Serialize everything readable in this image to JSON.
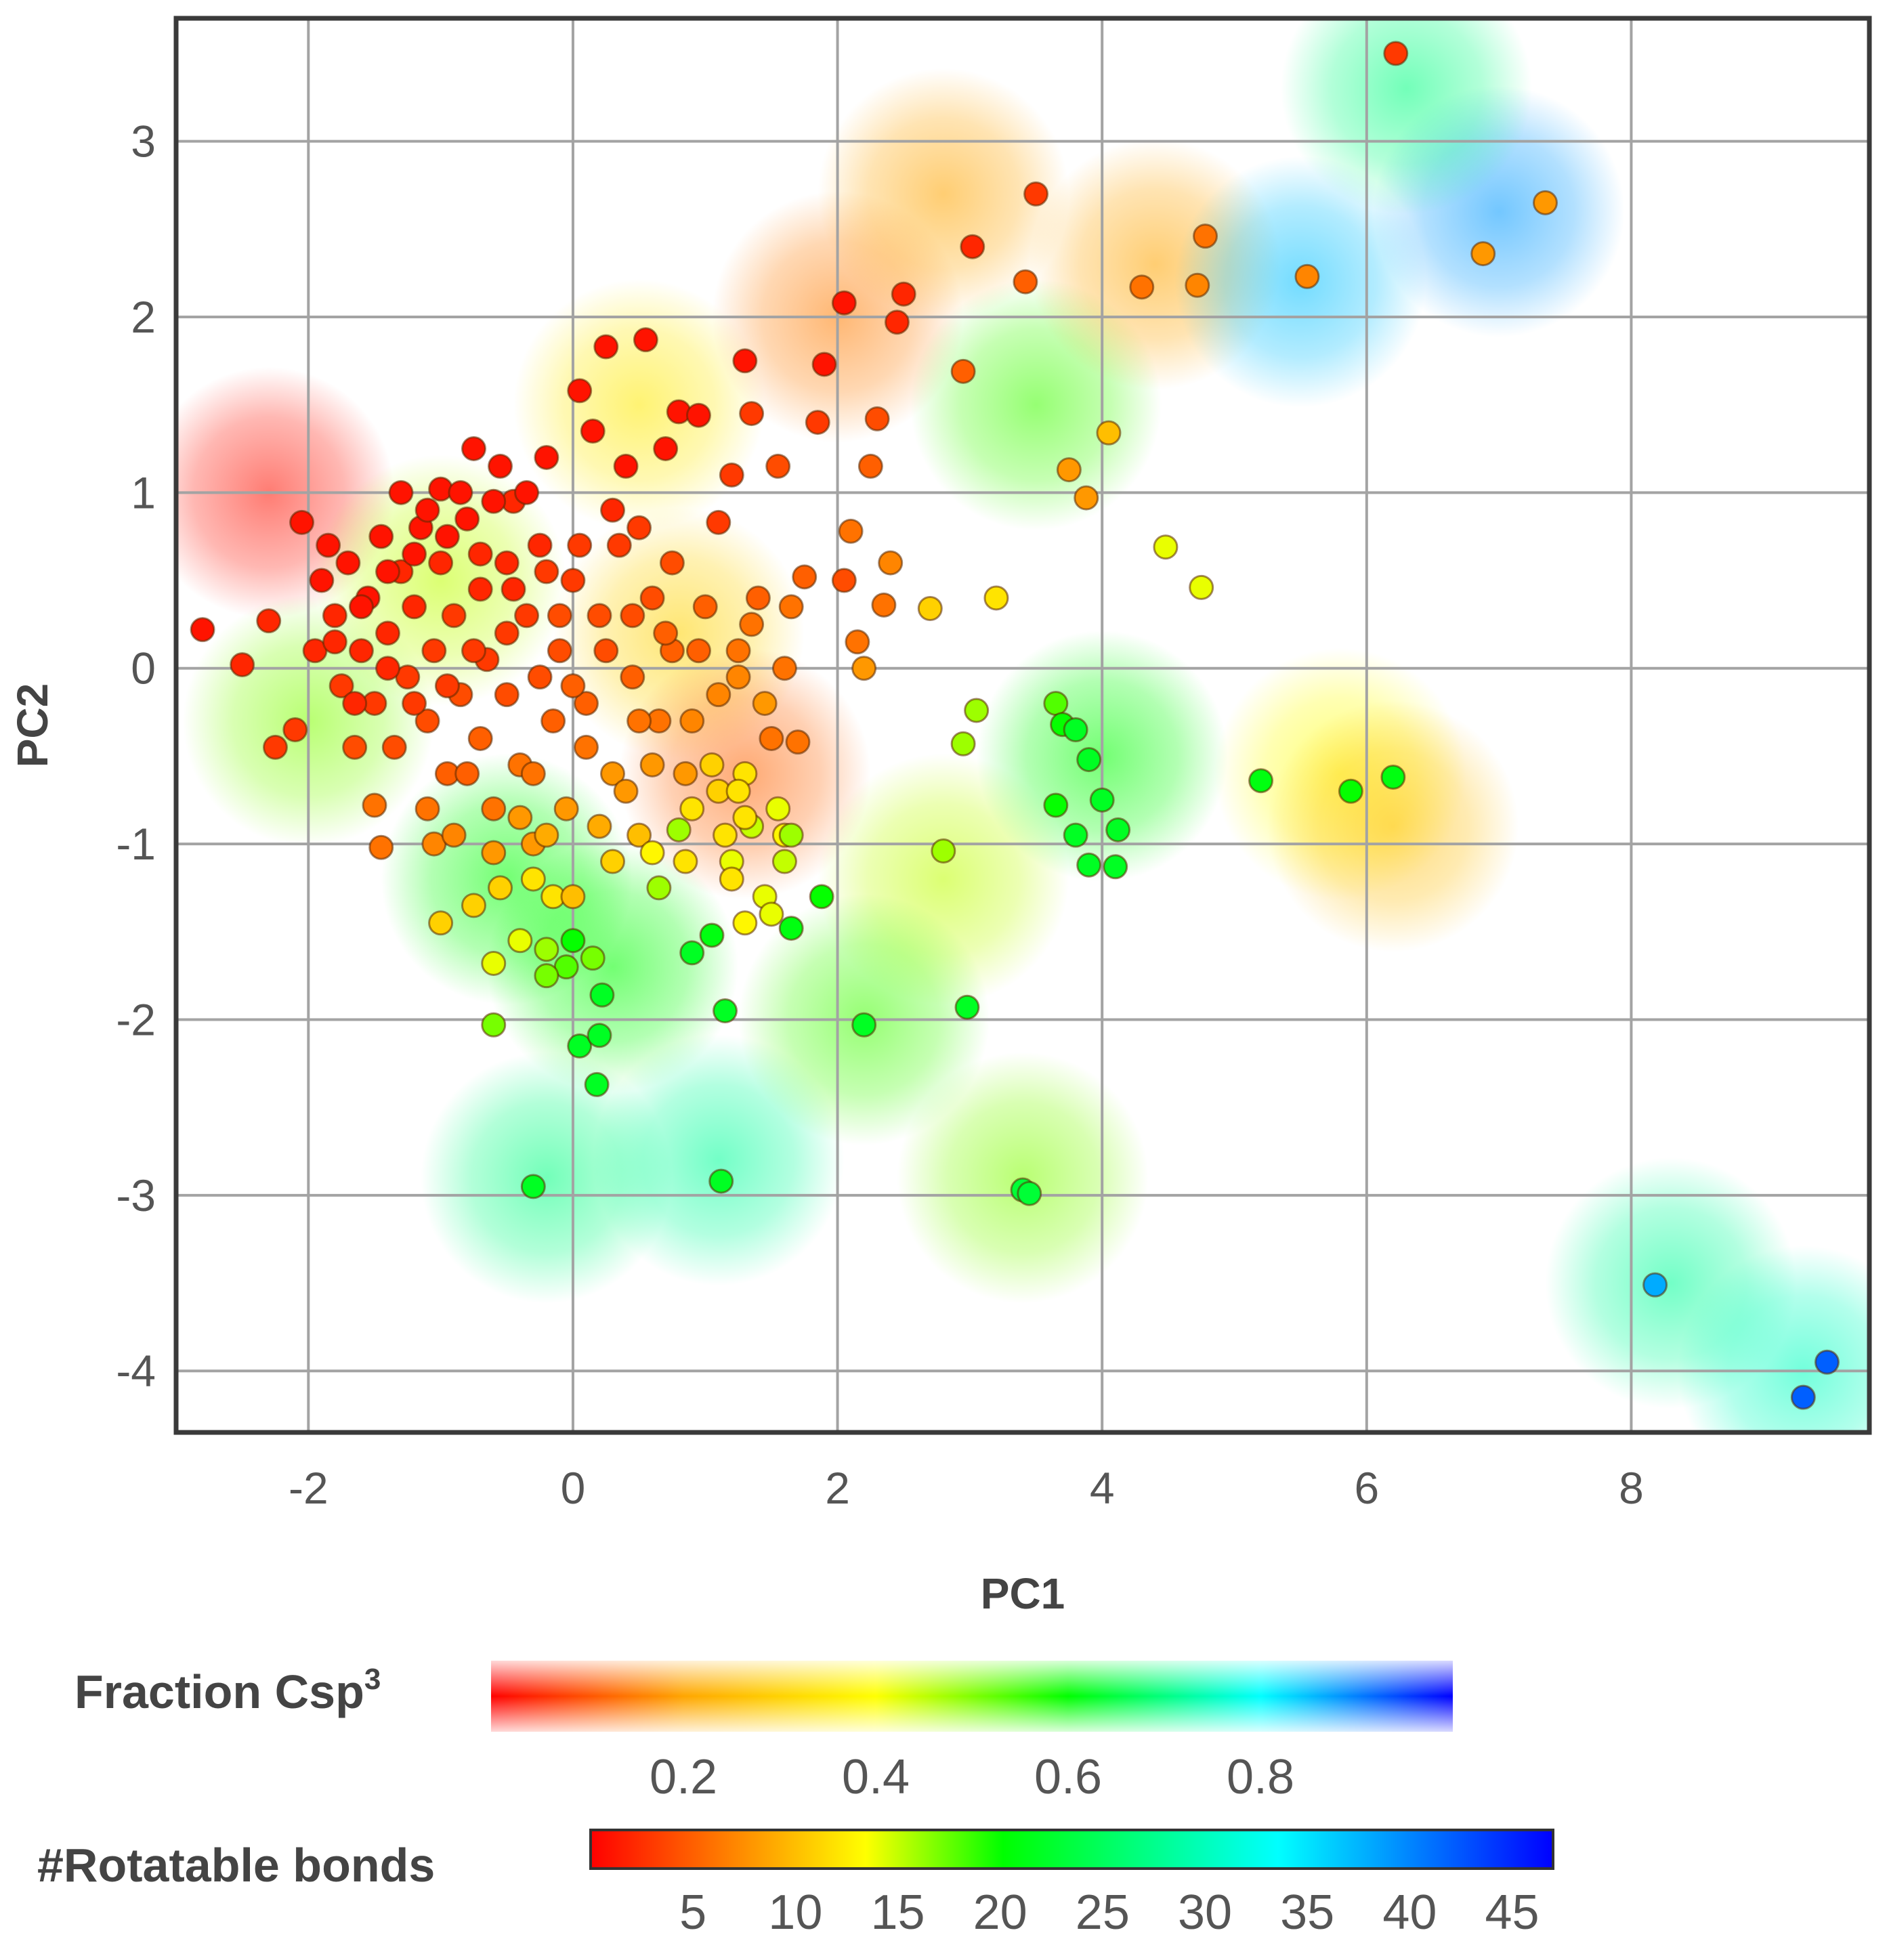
{
  "chart_data": {
    "type": "scatter",
    "xlabel": "PC1",
    "ylabel": "PC2",
    "xlim": [
      -3.0,
      9.8
    ],
    "ylim": [
      -4.35,
      3.7
    ],
    "xticks": [
      -2,
      0,
      2,
      4,
      6,
      8
    ],
    "yticks": [
      -4,
      -3,
      -2,
      -1,
      0,
      1,
      2,
      3
    ],
    "grid": true,
    "density_legend": {
      "title": "Fraction Csp",
      "title_superscript": "3",
      "range": [
        0,
        1
      ],
      "ticks": [
        0.2,
        0.4,
        0.6,
        0.8
      ],
      "colors": [
        "#ff0000",
        "#ffa500",
        "#ffff00",
        "#00ff00",
        "#00ffff",
        "#0000ff"
      ]
    },
    "point_legend": {
      "title": "#Rotatable bonds",
      "range": [
        0,
        47
      ],
      "ticks": [
        5,
        10,
        15,
        20,
        25,
        30,
        35,
        40,
        45
      ],
      "colors": [
        "#ff0000",
        "#ff8000",
        "#ffff00",
        "#00ff00",
        "#00ff80",
        "#00ffff",
        "#0080ff",
        "#0000ff"
      ]
    },
    "density_blobs": [
      {
        "x": -2.3,
        "y": 1.0,
        "v": 0.02
      },
      {
        "x": -2.0,
        "y": -0.3,
        "v": 0.5
      },
      {
        "x": -1.0,
        "y": 0.5,
        "v": 0.45
      },
      {
        "x": -0.5,
        "y": -1.2,
        "v": 0.6
      },
      {
        "x": 0.3,
        "y": -1.7,
        "v": 0.6
      },
      {
        "x": 0.8,
        "y": 0.2,
        "v": 0.3
      },
      {
        "x": 1.3,
        "y": -0.6,
        "v": 0.12
      },
      {
        "x": 0.5,
        "y": 1.5,
        "v": 0.35
      },
      {
        "x": 2.0,
        "y": 2.0,
        "v": 0.15
      },
      {
        "x": 2.8,
        "y": 2.7,
        "v": 0.2
      },
      {
        "x": 2.8,
        "y": -1.2,
        "v": 0.45
      },
      {
        "x": 3.5,
        "y": 1.5,
        "v": 0.55
      },
      {
        "x": 4.0,
        "y": -0.5,
        "v": 0.6
      },
      {
        "x": 4.4,
        "y": 2.3,
        "v": 0.2
      },
      {
        "x": 5.5,
        "y": 2.2,
        "v": 0.85
      },
      {
        "x": 7.0,
        "y": 2.6,
        "v": 0.88
      },
      {
        "x": 6.3,
        "y": 3.3,
        "v": 0.7
      },
      {
        "x": 5.8,
        "y": -0.6,
        "v": 0.4
      },
      {
        "x": 6.2,
        "y": -0.9,
        "v": 0.25
      },
      {
        "x": -0.2,
        "y": -2.9,
        "v": 0.7
      },
      {
        "x": 1.1,
        "y": -2.8,
        "v": 0.72
      },
      {
        "x": 3.4,
        "y": -2.9,
        "v": 0.5
      },
      {
        "x": 8.3,
        "y": -3.5,
        "v": 0.72
      },
      {
        "x": 9.3,
        "y": -4.0,
        "v": 0.75
      },
      {
        "x": 2.2,
        "y": -2.0,
        "v": 0.55
      }
    ],
    "points": [
      {
        "x": -2.8,
        "y": 0.22,
        "r": 1
      },
      {
        "x": -2.5,
        "y": 0.02,
        "r": 2
      },
      {
        "x": -2.3,
        "y": 0.27,
        "r": 2
      },
      {
        "x": -2.25,
        "y": -0.45,
        "r": 3
      },
      {
        "x": -2.05,
        "y": 0.83,
        "r": 1
      },
      {
        "x": -2.1,
        "y": -0.35,
        "r": 3
      },
      {
        "x": -1.95,
        "y": 0.1,
        "r": 2
      },
      {
        "x": -1.9,
        "y": 0.5,
        "r": 1
      },
      {
        "x": -1.85,
        "y": 0.7,
        "r": 1
      },
      {
        "x": -1.8,
        "y": 0.3,
        "r": 2
      },
      {
        "x": -1.75,
        "y": -0.1,
        "r": 3
      },
      {
        "x": -1.7,
        "y": 0.6,
        "r": 1
      },
      {
        "x": -1.6,
        "y": 0.1,
        "r": 2
      },
      {
        "x": -1.55,
        "y": 0.4,
        "r": 1
      },
      {
        "x": -1.5,
        "y": -0.2,
        "r": 3
      },
      {
        "x": -1.45,
        "y": 0.75,
        "r": 1
      },
      {
        "x": -1.4,
        "y": 0.2,
        "r": 2
      },
      {
        "x": -1.35,
        "y": -0.45,
        "r": 4
      },
      {
        "x": -1.3,
        "y": 0.55,
        "r": 2
      },
      {
        "x": -1.3,
        "y": 1.0,
        "r": 1
      },
      {
        "x": -1.25,
        "y": -0.05,
        "r": 3
      },
      {
        "x": -1.2,
        "y": 0.35,
        "r": 2
      },
      {
        "x": -1.15,
        "y": 0.8,
        "r": 1
      },
      {
        "x": -1.1,
        "y": -0.3,
        "r": 4
      },
      {
        "x": -1.05,
        "y": 0.1,
        "r": 3
      },
      {
        "x": -1.0,
        "y": 0.6,
        "r": 2
      },
      {
        "x": -1.0,
        "y": 1.02,
        "r": 1
      },
      {
        "x": -0.95,
        "y": -0.6,
        "r": 5
      },
      {
        "x": -0.9,
        "y": 0.3,
        "r": 3
      },
      {
        "x": -0.85,
        "y": -0.15,
        "r": 4
      },
      {
        "x": -0.8,
        "y": 0.85,
        "r": 1
      },
      {
        "x": -0.75,
        "y": 1.25,
        "r": 1
      },
      {
        "x": -0.7,
        "y": 0.45,
        "r": 2
      },
      {
        "x": -0.7,
        "y": -0.4,
        "r": 5
      },
      {
        "x": -0.65,
        "y": 0.05,
        "r": 3
      },
      {
        "x": -0.6,
        "y": -0.8,
        "r": 6
      },
      {
        "x": -0.55,
        "y": 1.15,
        "r": 1
      },
      {
        "x": -0.5,
        "y": 0.6,
        "r": 2
      },
      {
        "x": -0.5,
        "y": -0.15,
        "r": 4
      },
      {
        "x": -0.45,
        "y": 0.95,
        "r": 2
      },
      {
        "x": -0.4,
        "y": -0.55,
        "r": 6
      },
      {
        "x": -0.35,
        "y": 0.3,
        "r": 3
      },
      {
        "x": -0.3,
        "y": -1.0,
        "r": 8
      },
      {
        "x": -0.25,
        "y": 0.7,
        "r": 2
      },
      {
        "x": -0.2,
        "y": 1.2,
        "r": 1
      },
      {
        "x": -0.15,
        "y": -0.3,
        "r": 5
      },
      {
        "x": -0.1,
        "y": 0.1,
        "r": 4
      },
      {
        "x": -0.05,
        "y": -0.8,
        "r": 8
      },
      {
        "x": 0.0,
        "y": 0.5,
        "r": 3
      },
      {
        "x": 0.05,
        "y": 1.58,
        "r": 1
      },
      {
        "x": 0.1,
        "y": -0.2,
        "r": 5
      },
      {
        "x": 0.15,
        "y": 1.35,
        "r": 1
      },
      {
        "x": 0.2,
        "y": 0.3,
        "r": 4
      },
      {
        "x": 0.25,
        "y": 1.83,
        "r": 1
      },
      {
        "x": 0.3,
        "y": -0.6,
        "r": 8
      },
      {
        "x": 0.35,
        "y": 0.7,
        "r": 3
      },
      {
        "x": 0.4,
        "y": 1.15,
        "r": 1
      },
      {
        "x": 0.45,
        "y": -0.05,
        "r": 5
      },
      {
        "x": 0.5,
        "y": -0.95,
        "r": 10
      },
      {
        "x": 0.55,
        "y": 1.87,
        "r": 1
      },
      {
        "x": 0.6,
        "y": 0.4,
        "r": 4
      },
      {
        "x": 0.65,
        "y": -0.3,
        "r": 6
      },
      {
        "x": 0.7,
        "y": 1.25,
        "r": 1
      },
      {
        "x": 0.75,
        "y": 0.1,
        "r": 5
      },
      {
        "x": 0.8,
        "y": 1.46,
        "r": 1
      },
      {
        "x": 0.85,
        "y": -0.6,
        "r": 8
      },
      {
        "x": 0.95,
        "y": 1.44,
        "r": 1
      },
      {
        "x": 1.0,
        "y": 0.35,
        "r": 5
      },
      {
        "x": 1.05,
        "y": -0.55,
        "r": 11
      },
      {
        "x": 1.1,
        "y": 0.83,
        "r": 3
      },
      {
        "x": 1.15,
        "y": -0.95,
        "r": 12
      },
      {
        "x": 1.2,
        "y": 1.1,
        "r": 3
      },
      {
        "x": 1.25,
        "y": 0.1,
        "r": 6
      },
      {
        "x": 1.3,
        "y": 1.75,
        "r": 1
      },
      {
        "x": 1.3,
        "y": -0.6,
        "r": 12
      },
      {
        "x": 1.35,
        "y": 1.45,
        "r": 3
      },
      {
        "x": 1.4,
        "y": 0.4,
        "r": 5
      },
      {
        "x": 1.45,
        "y": -1.3,
        "r": 14
      },
      {
        "x": 1.5,
        "y": -0.4,
        "r": 6
      },
      {
        "x": 1.55,
        "y": 1.15,
        "r": 4
      },
      {
        "x": 1.6,
        "y": -0.95,
        "r": 13
      },
      {
        "x": 1.65,
        "y": 0.35,
        "r": 6
      },
      {
        "x": 1.7,
        "y": -0.42,
        "r": 6
      },
      {
        "x": 1.75,
        "y": 0.52,
        "r": 5
      },
      {
        "x": 1.85,
        "y": 1.4,
        "r": 3
      },
      {
        "x": 1.9,
        "y": 1.73,
        "r": 1
      },
      {
        "x": 1.88,
        "y": -1.3,
        "r": 20
      },
      {
        "x": 2.05,
        "y": 2.08,
        "r": 1
      },
      {
        "x": 2.05,
        "y": 0.5,
        "r": 4
      },
      {
        "x": 2.1,
        "y": 0.78,
        "r": 6
      },
      {
        "x": 2.15,
        "y": 0.15,
        "r": 6
      },
      {
        "x": 2.2,
        "y": 0.0,
        "r": 8
      },
      {
        "x": 2.2,
        "y": -2.03,
        "r": 22
      },
      {
        "x": 2.25,
        "y": 1.15,
        "r": 5
      },
      {
        "x": 2.3,
        "y": 1.42,
        "r": 4
      },
      {
        "x": 2.35,
        "y": 0.36,
        "r": 6
      },
      {
        "x": 2.4,
        "y": 0.6,
        "r": 7
      },
      {
        "x": 2.45,
        "y": 1.97,
        "r": 2
      },
      {
        "x": 2.5,
        "y": 2.13,
        "r": 2
      },
      {
        "x": 2.7,
        "y": 0.34,
        "r": 11
      },
      {
        "x": 2.8,
        "y": -1.04,
        "r": 16
      },
      {
        "x": 2.95,
        "y": 1.69,
        "r": 5
      },
      {
        "x": 2.95,
        "y": -0.43,
        "r": 16
      },
      {
        "x": 2.98,
        "y": -1.93,
        "r": 22
      },
      {
        "x": 3.02,
        "y": 2.4,
        "r": 2
      },
      {
        "x": 3.05,
        "y": -0.24,
        "r": 16
      },
      {
        "x": 3.2,
        "y": 0.4,
        "r": 12
      },
      {
        "x": 3.42,
        "y": 2.2,
        "r": 5
      },
      {
        "x": 3.4,
        "y": -2.97,
        "r": 23
      },
      {
        "x": 3.45,
        "y": -2.99,
        "r": 23
      },
      {
        "x": 3.5,
        "y": 2.7,
        "r": 3
      },
      {
        "x": 3.65,
        "y": -0.2,
        "r": 18
      },
      {
        "x": 3.7,
        "y": -0.32,
        "r": 20
      },
      {
        "x": 3.65,
        "y": -0.78,
        "r": 20
      },
      {
        "x": 3.75,
        "y": 1.13,
        "r": 8
      },
      {
        "x": 3.8,
        "y": -0.35,
        "r": 22
      },
      {
        "x": 3.8,
        "y": -0.95,
        "r": 22
      },
      {
        "x": 3.88,
        "y": 0.97,
        "r": 8
      },
      {
        "x": 3.9,
        "y": -0.52,
        "r": 22
      },
      {
        "x": 3.9,
        "y": -1.12,
        "r": 22
      },
      {
        "x": 4.0,
        "y": -0.75,
        "r": 22
      },
      {
        "x": 4.05,
        "y": 1.34,
        "r": 10
      },
      {
        "x": 4.1,
        "y": -1.13,
        "r": 22
      },
      {
        "x": 4.12,
        "y": -0.92,
        "r": 22
      },
      {
        "x": 4.3,
        "y": 2.17,
        "r": 6
      },
      {
        "x": 4.48,
        "y": 0.69,
        "r": 14
      },
      {
        "x": 4.72,
        "y": 2.18,
        "r": 7
      },
      {
        "x": 4.75,
        "y": 0.46,
        "r": 14
      },
      {
        "x": 4.78,
        "y": 2.46,
        "r": 6
      },
      {
        "x": 5.2,
        "y": -0.64,
        "r": 21
      },
      {
        "x": 5.55,
        "y": 2.23,
        "r": 7
      },
      {
        "x": 5.88,
        "y": -0.7,
        "r": 20
      },
      {
        "x": 6.2,
        "y": -0.62,
        "r": 21
      },
      {
        "x": 6.22,
        "y": 3.5,
        "r": 3
      },
      {
        "x": 6.88,
        "y": 2.36,
        "r": 8
      },
      {
        "x": 7.35,
        "y": 2.65,
        "r": 8
      },
      {
        "x": 8.18,
        "y": -3.51,
        "r": 38
      },
      {
        "x": 9.3,
        "y": -4.15,
        "r": 42
      },
      {
        "x": 9.48,
        "y": -3.95,
        "r": 42
      },
      {
        "x": -0.6,
        "y": -2.03,
        "r": 17
      },
      {
        "x": -0.3,
        "y": -2.95,
        "r": 22
      },
      {
        "x": 0.05,
        "y": -2.15,
        "r": 22
      },
      {
        "x": 0.2,
        "y": -2.09,
        "r": 22
      },
      {
        "x": 0.18,
        "y": -2.37,
        "r": 22
      },
      {
        "x": 0.22,
        "y": -1.86,
        "r": 22
      },
      {
        "x": 1.12,
        "y": -2.92,
        "r": 22
      },
      {
        "x": 1.15,
        "y": -1.95,
        "r": 22
      },
      {
        "x": 0.9,
        "y": -1.62,
        "r": 22
      },
      {
        "x": 1.05,
        "y": -1.52,
        "r": 21
      },
      {
        "x": 1.65,
        "y": -1.48,
        "r": 21
      },
      {
        "x": 0.65,
        "y": -1.25,
        "r": 16
      },
      {
        "x": 0.8,
        "y": -0.92,
        "r": 16
      },
      {
        "x": 0.0,
        "y": -1.55,
        "r": 20
      },
      {
        "x": -0.05,
        "y": -1.7,
        "r": 18
      },
      {
        "x": -0.2,
        "y": -1.75,
        "r": 17
      },
      {
        "x": 0.15,
        "y": -1.65,
        "r": 17
      },
      {
        "x": -0.2,
        "y": -1.6,
        "r": 16
      },
      {
        "x": -0.4,
        "y": -1.55,
        "r": 14
      },
      {
        "x": -0.6,
        "y": -1.68,
        "r": 14
      },
      {
        "x": -1.0,
        "y": -1.45,
        "r": 11
      },
      {
        "x": -0.75,
        "y": -1.35,
        "r": 11
      },
      {
        "x": -0.55,
        "y": -1.25,
        "r": 11
      },
      {
        "x": -0.3,
        "y": -1.2,
        "r": 12
      },
      {
        "x": -0.15,
        "y": -1.3,
        "r": 12
      },
      {
        "x": 0.0,
        "y": -1.3,
        "r": 10
      },
      {
        "x": 0.3,
        "y": -1.1,
        "r": 11
      },
      {
        "x": 0.6,
        "y": -1.05,
        "r": 13
      },
      {
        "x": 1.2,
        "y": -1.1,
        "r": 14
      },
      {
        "x": 1.35,
        "y": -0.9,
        "r": 15
      },
      {
        "x": 1.55,
        "y": -0.8,
        "r": 14
      },
      {
        "x": 1.65,
        "y": -0.95,
        "r": 16
      },
      {
        "x": 1.6,
        "y": -1.1,
        "r": 15
      },
      {
        "x": 1.5,
        "y": -1.4,
        "r": 14
      },
      {
        "x": 1.3,
        "y": -1.45,
        "r": 13
      },
      {
        "x": 1.2,
        "y": -1.2,
        "r": 12
      },
      {
        "x": 0.85,
        "y": -1.1,
        "r": 12
      },
      {
        "x": 0.9,
        "y": -0.8,
        "r": 12
      },
      {
        "x": 1.1,
        "y": -0.7,
        "r": 11
      },
      {
        "x": 1.25,
        "y": -0.7,
        "r": 12
      },
      {
        "x": 1.3,
        "y": -0.85,
        "r": 12
      },
      {
        "x": -1.05,
        "y": -1.0,
        "r": 7
      },
      {
        "x": -1.45,
        "y": -1.02,
        "r": 6
      },
      {
        "x": -1.5,
        "y": -0.78,
        "r": 6
      },
      {
        "x": -1.65,
        "y": -0.45,
        "r": 4
      },
      {
        "x": -1.1,
        "y": -0.8,
        "r": 6
      },
      {
        "x": -0.9,
        "y": -0.95,
        "r": 7
      },
      {
        "x": -0.6,
        "y": -1.05,
        "r": 8
      },
      {
        "x": -0.4,
        "y": -0.85,
        "r": 8
      },
      {
        "x": -0.2,
        "y": -0.95,
        "r": 9
      },
      {
        "x": 0.2,
        "y": -0.9,
        "r": 9
      },
      {
        "x": 0.4,
        "y": -0.7,
        "r": 8
      },
      {
        "x": 0.6,
        "y": -0.55,
        "r": 8
      },
      {
        "x": 0.9,
        "y": -0.3,
        "r": 7
      },
      {
        "x": 1.1,
        "y": -0.15,
        "r": 7
      },
      {
        "x": 1.25,
        "y": -0.05,
        "r": 7
      },
      {
        "x": 1.45,
        "y": -0.2,
        "r": 8
      },
      {
        "x": 1.6,
        "y": 0.0,
        "r": 6
      },
      {
        "x": 1.35,
        "y": 0.25,
        "r": 6
      },
      {
        "x": 0.95,
        "y": 0.1,
        "r": 5
      },
      {
        "x": 0.7,
        "y": 0.2,
        "r": 5
      },
      {
        "x": 0.45,
        "y": 0.3,
        "r": 4
      },
      {
        "x": 0.25,
        "y": 0.1,
        "r": 4
      },
      {
        "x": 0.0,
        "y": -0.1,
        "r": 5
      },
      {
        "x": -0.25,
        "y": -0.05,
        "r": 4
      },
      {
        "x": -0.5,
        "y": 0.2,
        "r": 3
      },
      {
        "x": -0.75,
        "y": 0.1,
        "r": 3
      },
      {
        "x": -0.95,
        "y": -0.1,
        "r": 3
      },
      {
        "x": -1.2,
        "y": -0.2,
        "r": 3
      },
      {
        "x": -1.4,
        "y": 0.0,
        "r": 2
      },
      {
        "x": -1.6,
        "y": 0.35,
        "r": 1
      },
      {
        "x": -1.8,
        "y": 0.15,
        "r": 2
      },
      {
        "x": -1.2,
        "y": 0.65,
        "r": 1
      },
      {
        "x": -0.95,
        "y": 0.75,
        "r": 1
      },
      {
        "x": -0.7,
        "y": 0.65,
        "r": 2
      },
      {
        "x": -0.45,
        "y": 0.45,
        "r": 2
      },
      {
        "x": -0.2,
        "y": 0.55,
        "r": 3
      },
      {
        "x": 0.05,
        "y": 0.7,
        "r": 3
      },
      {
        "x": 0.3,
        "y": 0.9,
        "r": 2
      },
      {
        "x": 0.5,
        "y": 0.8,
        "r": 3
      },
      {
        "x": 0.75,
        "y": 0.6,
        "r": 4
      },
      {
        "x": -0.35,
        "y": 1.0,
        "r": 1
      },
      {
        "x": -0.6,
        "y": 0.95,
        "r": 1
      },
      {
        "x": -0.85,
        "y": 1.0,
        "r": 1
      },
      {
        "x": -1.1,
        "y": 0.9,
        "r": 1
      },
      {
        "x": -1.4,
        "y": 0.55,
        "r": 1
      },
      {
        "x": -1.65,
        "y": -0.2,
        "r": 2
      },
      {
        "x": -0.3,
        "y": -0.6,
        "r": 6
      },
      {
        "x": -0.8,
        "y": -0.6,
        "r": 5
      },
      {
        "x": 0.1,
        "y": -0.45,
        "r": 6
      },
      {
        "x": -0.1,
        "y": 0.3,
        "r": 4
      },
      {
        "x": 0.5,
        "y": -0.3,
        "r": 6
      }
    ]
  }
}
